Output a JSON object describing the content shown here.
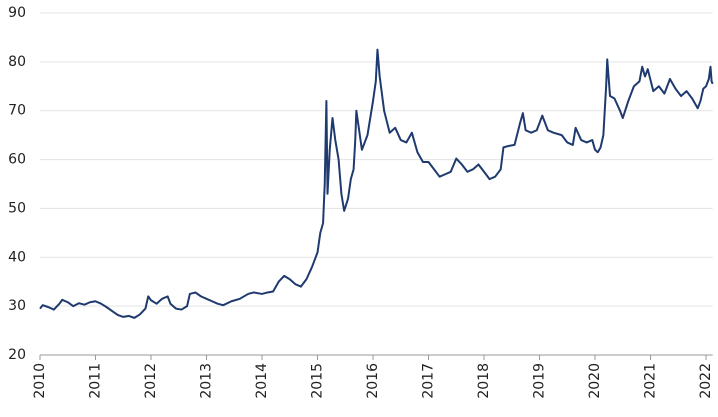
{
  "chart_data": {
    "type": "line",
    "color": "#1f3a6e",
    "grid": true,
    "xlim": [
      2010,
      2022.12
    ],
    "ylim": [
      20,
      90
    ],
    "xticks": [
      2010,
      2011,
      2012,
      2013,
      2014,
      2015,
      2016,
      2017,
      2018,
      2019,
      2020,
      2021,
      2022
    ],
    "yticks": [
      20,
      30,
      40,
      50,
      60,
      70,
      80,
      90
    ],
    "x": [
      2010.0,
      2010.05,
      2010.15,
      2010.25,
      2010.35,
      2010.4,
      2010.5,
      2010.6,
      2010.7,
      2010.8,
      2010.9,
      2011.0,
      2011.1,
      2011.2,
      2011.3,
      2011.4,
      2011.5,
      2011.6,
      2011.7,
      2011.8,
      2011.9,
      2011.95,
      2012.0,
      2012.1,
      2012.2,
      2012.3,
      2012.35,
      2012.45,
      2012.55,
      2012.65,
      2012.7,
      2012.8,
      2012.9,
      2013.0,
      2013.1,
      2013.2,
      2013.3,
      2013.45,
      2013.6,
      2013.75,
      2013.85,
      2014.0,
      2014.1,
      2014.2,
      2014.3,
      2014.4,
      2014.5,
      2014.6,
      2014.7,
      2014.8,
      2014.9,
      2015.0,
      2015.05,
      2015.1,
      2015.13,
      2015.16,
      2015.18,
      2015.22,
      2015.27,
      2015.32,
      2015.38,
      2015.43,
      2015.48,
      2015.55,
      2015.6,
      2015.65,
      2015.68,
      2015.7,
      2015.75,
      2015.8,
      2015.9,
      2016.0,
      2016.05,
      2016.08,
      2016.12,
      2016.2,
      2016.3,
      2016.4,
      2016.5,
      2016.6,
      2016.7,
      2016.8,
      2016.9,
      2017.0,
      2017.1,
      2017.2,
      2017.3,
      2017.4,
      2017.5,
      2017.6,
      2017.7,
      2017.8,
      2017.9,
      2018.0,
      2018.1,
      2018.2,
      2018.3,
      2018.35,
      2018.45,
      2018.55,
      2018.65,
      2018.7,
      2018.75,
      2018.85,
      2018.95,
      2019.0,
      2019.05,
      2019.15,
      2019.25,
      2019.4,
      2019.5,
      2019.6,
      2019.65,
      2019.75,
      2019.85,
      2019.95,
      2020.0,
      2020.05,
      2020.1,
      2020.15,
      2020.2,
      2020.22,
      2020.27,
      2020.35,
      2020.45,
      2020.5,
      2020.6,
      2020.7,
      2020.8,
      2020.85,
      2020.9,
      2020.95,
      2021.05,
      2021.15,
      2021.25,
      2021.35,
      2021.45,
      2021.55,
      2021.65,
      2021.75,
      2021.85,
      2021.9,
      2021.95,
      2022.0,
      2022.05,
      2022.08,
      2022.1,
      2022.12
    ],
    "values": [
      29.5,
      30.2,
      29.8,
      29.3,
      30.5,
      31.3,
      30.8,
      30.0,
      30.6,
      30.3,
      30.8,
      31.0,
      30.5,
      29.8,
      29.0,
      28.2,
      27.8,
      28.0,
      27.6,
      28.3,
      29.5,
      32.0,
      31.2,
      30.5,
      31.5,
      32.0,
      30.5,
      29.5,
      29.3,
      30.0,
      32.5,
      32.8,
      32.0,
      31.5,
      31.0,
      30.5,
      30.2,
      31.0,
      31.5,
      32.5,
      32.8,
      32.5,
      32.8,
      33.0,
      35.0,
      36.2,
      35.5,
      34.5,
      34.0,
      35.5,
      38.0,
      41.0,
      45.0,
      47.0,
      55.0,
      72.0,
      53.0,
      62.0,
      68.5,
      64.0,
      60.0,
      53.0,
      49.5,
      52.0,
      56.0,
      58.0,
      64.0,
      70.0,
      66.0,
      62.0,
      65.0,
      72.0,
      76.0,
      82.5,
      77.0,
      70.0,
      65.5,
      66.5,
      64.0,
      63.5,
      65.5,
      61.5,
      59.5,
      59.5,
      58.0,
      56.5,
      57.0,
      57.5,
      60.2,
      59.0,
      57.5,
      58.0,
      59.0,
      57.5,
      56.0,
      56.5,
      58.0,
      62.5,
      62.8,
      63.0,
      67.5,
      69.5,
      66.0,
      65.5,
      66.0,
      67.5,
      69.0,
      66.0,
      65.5,
      65.0,
      63.5,
      63.0,
      66.5,
      64.0,
      63.5,
      64.0,
      62.0,
      61.5,
      62.5,
      65.0,
      75.0,
      80.5,
      73.0,
      72.5,
      70.0,
      68.5,
      72.0,
      75.0,
      76.0,
      79.0,
      77.0,
      78.5,
      74.0,
      75.0,
      73.5,
      76.5,
      74.5,
      73.0,
      74.0,
      72.5,
      70.5,
      72.0,
      74.5,
      75.0,
      76.5,
      79.0,
      76.0,
      75.5
    ]
  }
}
